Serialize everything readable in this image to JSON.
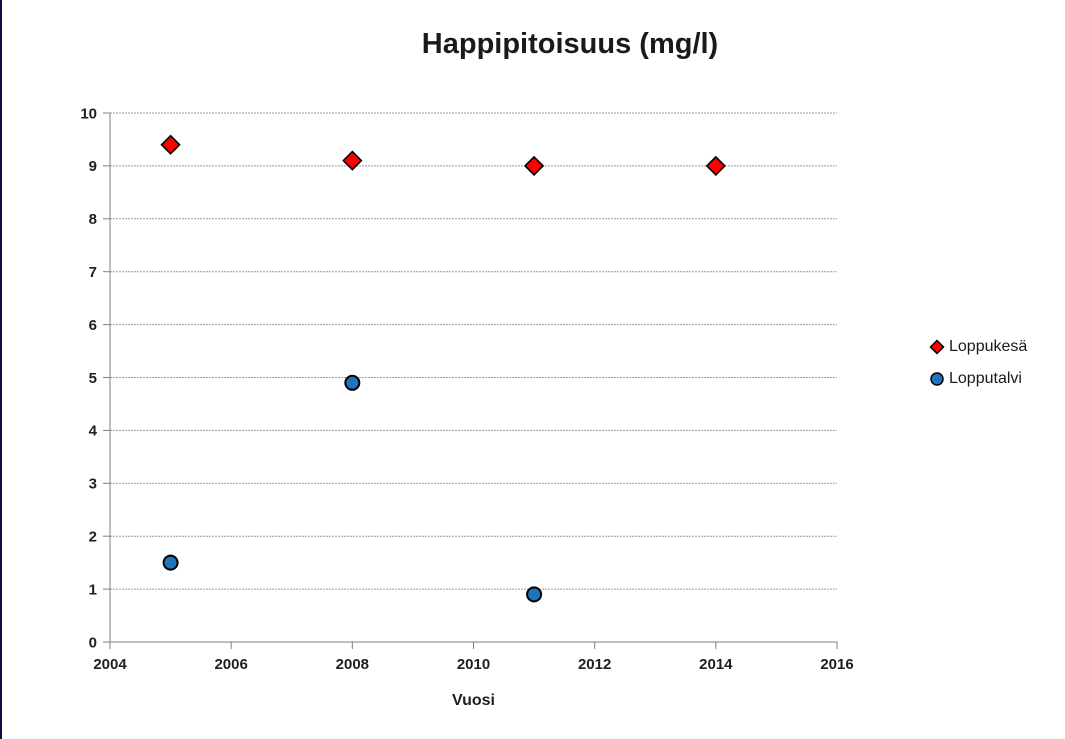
{
  "chart_data": {
    "type": "scatter",
    "title": "Happipitoisuus (mg/l)",
    "xlabel": "Vuosi",
    "ylabel": "",
    "xlim": [
      2004,
      2016
    ],
    "ylim": [
      0,
      10
    ],
    "xticks": [
      2004,
      2006,
      2008,
      2010,
      2012,
      2014,
      2016
    ],
    "yticks": [
      0,
      1,
      2,
      3,
      4,
      5,
      6,
      7,
      8,
      9,
      10
    ],
    "grid": "horizontal",
    "gridline_color": "#9a9a9a",
    "axis_color": "#7f7f7f",
    "tick_label_color": "#1f1f1f",
    "legend_position": "right",
    "series": [
      {
        "name": "Loppukesä",
        "marker": "diamond",
        "fill": "#ff0000",
        "stroke": "#000000",
        "points": [
          [
            2005,
            9.4
          ],
          [
            2008,
            9.1
          ],
          [
            2011,
            9.0
          ],
          [
            2014,
            9.0
          ]
        ]
      },
      {
        "name": "Lopputalvi",
        "marker": "circle",
        "fill": "#1f75bc",
        "stroke": "#000000",
        "points": [
          [
            2005,
            1.5
          ],
          [
            2008,
            4.9
          ],
          [
            2011,
            0.9
          ]
        ]
      }
    ]
  }
}
